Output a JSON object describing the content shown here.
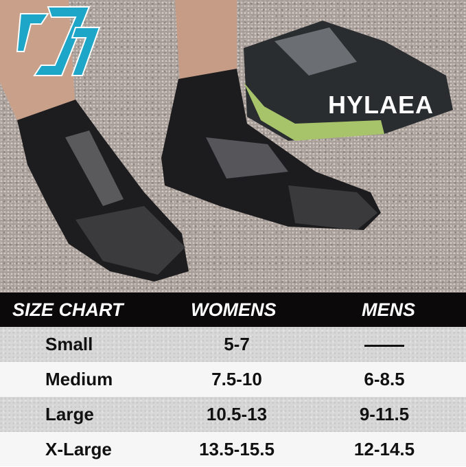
{
  "brand": {
    "name": "HYLAEA",
    "accent_color": "#1ea6c8"
  },
  "table": {
    "headers": [
      "SIZE CHART",
      "WOMENS",
      "MENS"
    ],
    "rows": [
      {
        "size": "Small",
        "womens": "5-7",
        "mens": "—"
      },
      {
        "size": "Medium",
        "womens": "7.5-10",
        "mens": "6-8.5"
      },
      {
        "size": "Large",
        "womens": "10.5-13",
        "mens": "9-11.5"
      },
      {
        "size": "X-Large",
        "womens": "13.5-15.5",
        "mens": "12-14.5"
      }
    ]
  }
}
